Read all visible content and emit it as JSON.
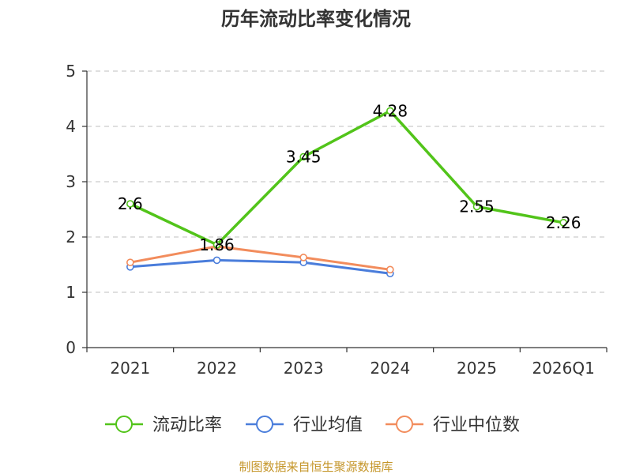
{
  "chart_data": {
    "type": "line",
    "title": "历年流动比率变化情况",
    "xlabel": "",
    "ylabel": "",
    "categories": [
      "2021",
      "2022",
      "2023",
      "2024",
      "2025",
      "2026Q1"
    ],
    "ylim": [
      0,
      5
    ],
    "yticks": [
      "0",
      "1",
      "2",
      "3",
      "4",
      "5"
    ],
    "grid": true,
    "legend_position": "bottom",
    "series": [
      {
        "name": "流动比率",
        "color": "#52c41a",
        "values": [
          2.6,
          1.86,
          3.45,
          4.28,
          2.55,
          2.26
        ],
        "labels": [
          "2.6",
          "1.86",
          "3.45",
          "4.28",
          "2.55",
          "2.26"
        ]
      },
      {
        "name": "行业均值",
        "color": "#4a7ddb",
        "values": [
          1.46,
          1.58,
          1.54,
          1.34,
          null,
          null
        ]
      },
      {
        "name": "行业中位数",
        "color": "#f28c5c",
        "values": [
          1.54,
          1.83,
          1.63,
          1.41,
          null,
          null
        ]
      }
    ]
  },
  "source_text": "制图数据来自恒生聚源数据库"
}
